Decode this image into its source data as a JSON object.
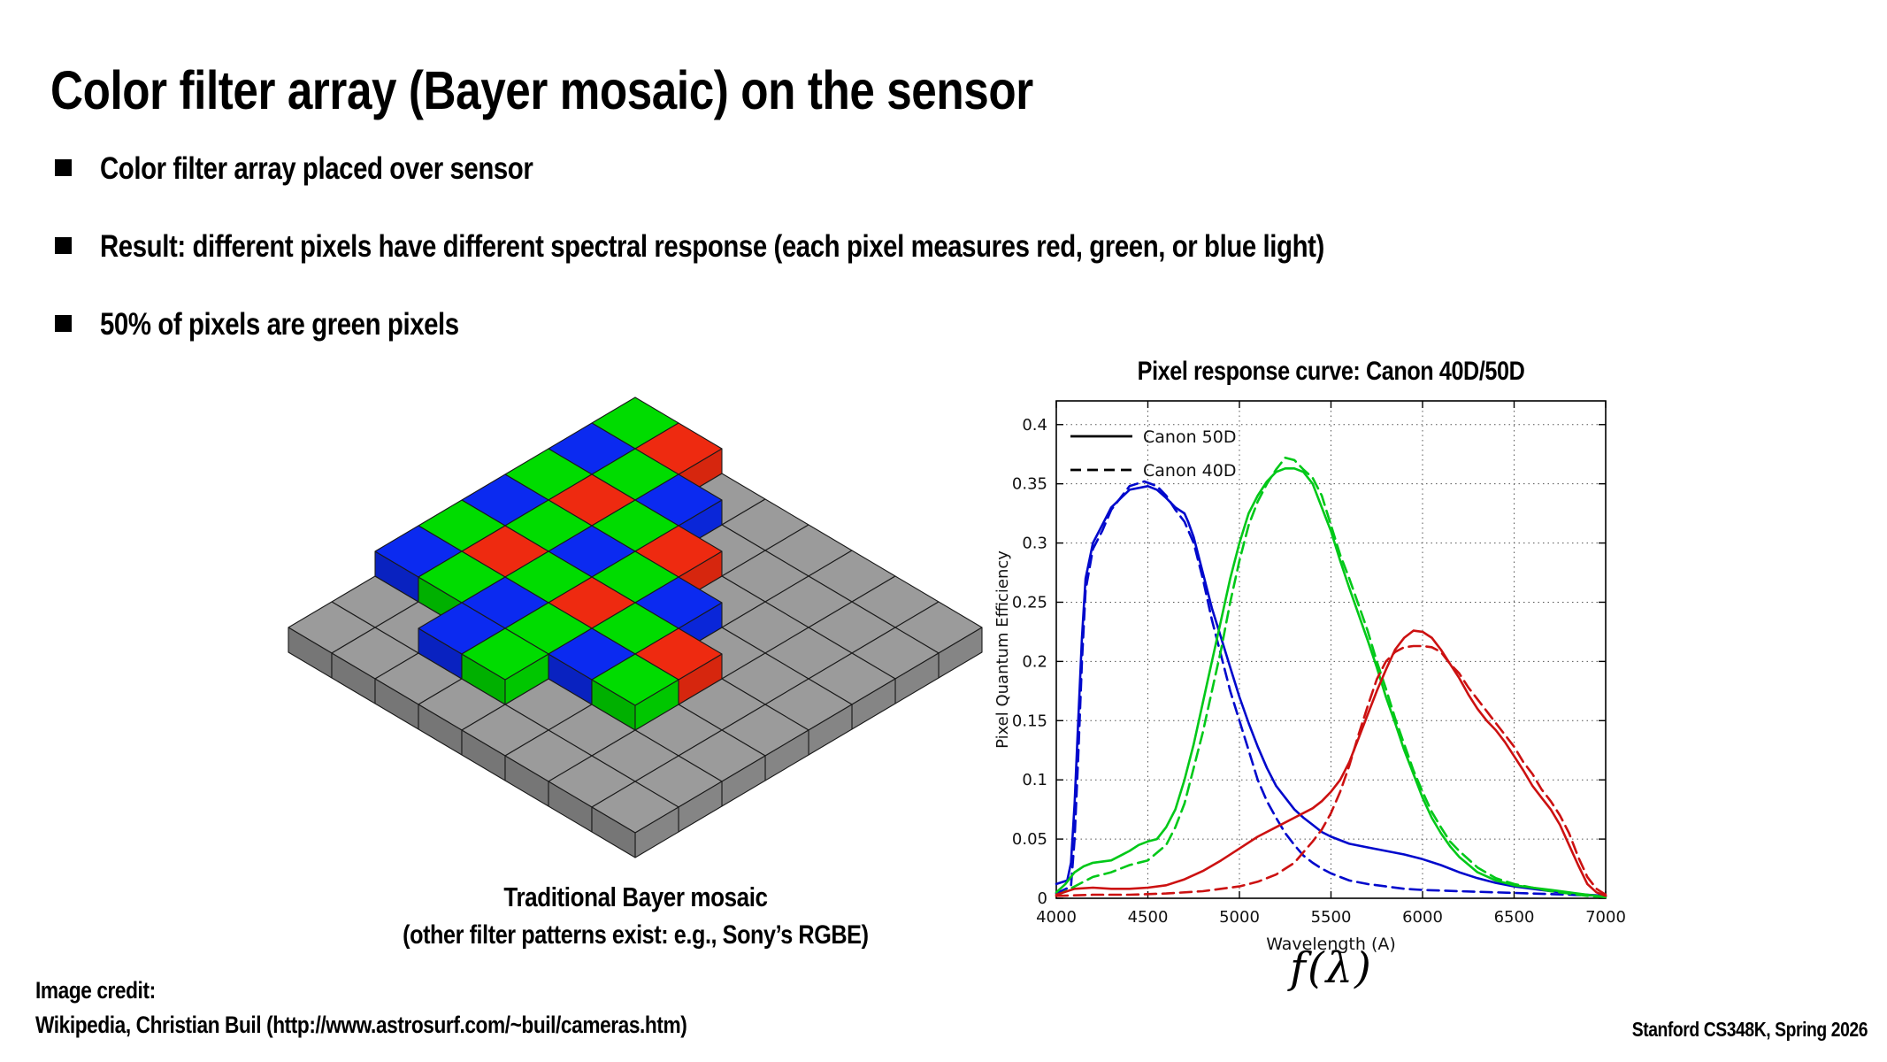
{
  "slide": {
    "title": "Color filter array (Bayer mosaic) on the sensor",
    "bullets": [
      "Color filter array placed over sensor",
      "Result: different pixels have different spectral response (each pixel measures red, green, or blue light)",
      "50% of pixels are green pixels"
    ],
    "footer_left_line1": "Image credit:",
    "footer_left_line2": "Wikipedia, Christian Buil (http://www.astrosurf.com/~buil/cameras.htm)",
    "footer_right": "Stanford CS348K, Spring 2026"
  },
  "mosaic": {
    "caption_line1": "Traditional Bayer mosaic",
    "caption_line2": "(other filter patterns exist: e.g., Sony’s RGBE)",
    "base_grid": {
      "cols": 8,
      "rows": 8
    },
    "palette": {
      "G": "#00dc00",
      "R": "#ee2a10",
      "B": "#0b2af0",
      "base": "#9b9b9b",
      "outline": "#1a1a1a"
    },
    "filter_rows": [
      {
        "y": 0,
        "x0": 0,
        "cells": "GR"
      },
      {
        "y": 1,
        "x0": 0,
        "cells": "BGB"
      },
      {
        "y": 2,
        "x0": 0,
        "cells": "GRGR"
      },
      {
        "y": 3,
        "x0": 0,
        "cells": "BGBGB"
      },
      {
        "y": 4,
        "x0": 0,
        "cells": "GRGRGR"
      },
      {
        "y": 5,
        "x0": 0,
        "cells": "BGBGBG"
      },
      {
        "y": 6,
        "x0": 2,
        "cells": "BG"
      }
    ]
  },
  "chart_data": {
    "type": "line",
    "title": "Pixel response curve: Canon 40D/50D",
    "xlabel": "Wavelength (A)",
    "ylabel": "Pixel Quantum Efficiency",
    "annotation_below": "f(λ)",
    "xlim": [
      4000,
      7000
    ],
    "ylim": [
      0,
      0.42
    ],
    "xticks": [
      4000,
      4500,
      5000,
      5500,
      6000,
      6500,
      7000
    ],
    "yticks": [
      0,
      0.05,
      0.1,
      0.15,
      0.2,
      0.25,
      0.3,
      0.35,
      0.4
    ],
    "grid": true,
    "legend_position": "top-left",
    "legend": [
      {
        "label": "Canon 50D",
        "style": "solid"
      },
      {
        "label": "Canon 40D",
        "style": "dashed"
      }
    ],
    "series": [
      {
        "name": "Blue channel Canon 50D",
        "color": "#0008cc",
        "style": "solid",
        "points": [
          [
            4000,
            0.012
          ],
          [
            4060,
            0.015
          ],
          [
            4080,
            0.03
          ],
          [
            4100,
            0.08
          ],
          [
            4120,
            0.15
          ],
          [
            4140,
            0.22
          ],
          [
            4160,
            0.27
          ],
          [
            4200,
            0.3
          ],
          [
            4250,
            0.315
          ],
          [
            4300,
            0.33
          ],
          [
            4400,
            0.345
          ],
          [
            4500,
            0.348
          ],
          [
            4550,
            0.345
          ],
          [
            4600,
            0.338
          ],
          [
            4650,
            0.33
          ],
          [
            4700,
            0.325
          ],
          [
            4720,
            0.318
          ],
          [
            4750,
            0.305
          ],
          [
            4800,
            0.275
          ],
          [
            4850,
            0.245
          ],
          [
            4900,
            0.22
          ],
          [
            4950,
            0.195
          ],
          [
            5000,
            0.17
          ],
          [
            5050,
            0.148
          ],
          [
            5100,
            0.128
          ],
          [
            5150,
            0.11
          ],
          [
            5200,
            0.095
          ],
          [
            5250,
            0.085
          ],
          [
            5300,
            0.075
          ],
          [
            5350,
            0.068
          ],
          [
            5400,
            0.062
          ],
          [
            5450,
            0.056
          ],
          [
            5500,
            0.052
          ],
          [
            5600,
            0.046
          ],
          [
            5700,
            0.043
          ],
          [
            5800,
            0.04
          ],
          [
            5900,
            0.037
          ],
          [
            6000,
            0.033
          ],
          [
            6100,
            0.028
          ],
          [
            6200,
            0.022
          ],
          [
            6300,
            0.017
          ],
          [
            6400,
            0.013
          ],
          [
            6500,
            0.01
          ],
          [
            6600,
            0.008
          ],
          [
            6700,
            0.006
          ],
          [
            6800,
            0.004
          ],
          [
            6900,
            0.003
          ],
          [
            7000,
            0.002
          ]
        ]
      },
      {
        "name": "Blue channel Canon 40D",
        "color": "#0008cc",
        "style": "dashed",
        "points": [
          [
            4000,
            0.004
          ],
          [
            4080,
            0.01
          ],
          [
            4100,
            0.05
          ],
          [
            4120,
            0.12
          ],
          [
            4140,
            0.2
          ],
          [
            4160,
            0.26
          ],
          [
            4200,
            0.295
          ],
          [
            4250,
            0.31
          ],
          [
            4300,
            0.328
          ],
          [
            4400,
            0.348
          ],
          [
            4480,
            0.352
          ],
          [
            4550,
            0.348
          ],
          [
            4600,
            0.34
          ],
          [
            4650,
            0.328
          ],
          [
            4700,
            0.318
          ],
          [
            4750,
            0.3
          ],
          [
            4800,
            0.27
          ],
          [
            4850,
            0.235
          ],
          [
            4900,
            0.205
          ],
          [
            4950,
            0.175
          ],
          [
            5000,
            0.15
          ],
          [
            5050,
            0.125
          ],
          [
            5100,
            0.1
          ],
          [
            5150,
            0.082
          ],
          [
            5200,
            0.068
          ],
          [
            5250,
            0.055
          ],
          [
            5300,
            0.045
          ],
          [
            5350,
            0.036
          ],
          [
            5400,
            0.03
          ],
          [
            5450,
            0.025
          ],
          [
            5500,
            0.021
          ],
          [
            5600,
            0.015
          ],
          [
            5700,
            0.012
          ],
          [
            5800,
            0.01
          ],
          [
            5900,
            0.008
          ],
          [
            6000,
            0.007
          ],
          [
            6200,
            0.006
          ],
          [
            6400,
            0.005
          ],
          [
            6600,
            0.004
          ],
          [
            6800,
            0.003
          ],
          [
            7000,
            0.002
          ]
        ]
      },
      {
        "name": "Green channel Canon 50D",
        "color": "#00c818",
        "style": "solid",
        "points": [
          [
            4000,
            0.005
          ],
          [
            4050,
            0.012
          ],
          [
            4100,
            0.022
          ],
          [
            4150,
            0.027
          ],
          [
            4200,
            0.03
          ],
          [
            4300,
            0.032
          ],
          [
            4400,
            0.04
          ],
          [
            4450,
            0.045
          ],
          [
            4500,
            0.048
          ],
          [
            4550,
            0.05
          ],
          [
            4600,
            0.06
          ],
          [
            4650,
            0.075
          ],
          [
            4700,
            0.1
          ],
          [
            4750,
            0.13
          ],
          [
            4800,
            0.165
          ],
          [
            4850,
            0.2
          ],
          [
            4900,
            0.235
          ],
          [
            4950,
            0.27
          ],
          [
            5000,
            0.3
          ],
          [
            5050,
            0.325
          ],
          [
            5100,
            0.34
          ],
          [
            5150,
            0.352
          ],
          [
            5200,
            0.36
          ],
          [
            5250,
            0.363
          ],
          [
            5300,
            0.363
          ],
          [
            5350,
            0.36
          ],
          [
            5400,
            0.35
          ],
          [
            5450,
            0.33
          ],
          [
            5500,
            0.31
          ],
          [
            5550,
            0.285
          ],
          [
            5600,
            0.262
          ],
          [
            5650,
            0.24
          ],
          [
            5700,
            0.218
          ],
          [
            5750,
            0.195
          ],
          [
            5800,
            0.17
          ],
          [
            5850,
            0.148
          ],
          [
            5900,
            0.125
          ],
          [
            5950,
            0.105
          ],
          [
            6000,
            0.085
          ],
          [
            6050,
            0.068
          ],
          [
            6100,
            0.055
          ],
          [
            6150,
            0.044
          ],
          [
            6200,
            0.035
          ],
          [
            6300,
            0.022
          ],
          [
            6400,
            0.015
          ],
          [
            6500,
            0.011
          ],
          [
            6600,
            0.009
          ],
          [
            6700,
            0.007
          ],
          [
            6800,
            0.005
          ],
          [
            6900,
            0.003
          ],
          [
            7000,
            0.001
          ]
        ]
      },
      {
        "name": "Green channel Canon 40D",
        "color": "#00c818",
        "style": "dashed",
        "points": [
          [
            4000,
            0.002
          ],
          [
            4100,
            0.01
          ],
          [
            4200,
            0.018
          ],
          [
            4300,
            0.022
          ],
          [
            4400,
            0.028
          ],
          [
            4500,
            0.032
          ],
          [
            4600,
            0.045
          ],
          [
            4650,
            0.06
          ],
          [
            4700,
            0.08
          ],
          [
            4750,
            0.11
          ],
          [
            4800,
            0.14
          ],
          [
            4850,
            0.175
          ],
          [
            4900,
            0.21
          ],
          [
            4950,
            0.25
          ],
          [
            5000,
            0.285
          ],
          [
            5050,
            0.315
          ],
          [
            5100,
            0.335
          ],
          [
            5150,
            0.35
          ],
          [
            5200,
            0.362
          ],
          [
            5250,
            0.372
          ],
          [
            5300,
            0.37
          ],
          [
            5350,
            0.362
          ],
          [
            5400,
            0.355
          ],
          [
            5450,
            0.34
          ],
          [
            5500,
            0.315
          ],
          [
            5550,
            0.29
          ],
          [
            5600,
            0.27
          ],
          [
            5650,
            0.248
          ],
          [
            5700,
            0.226
          ],
          [
            5750,
            0.2
          ],
          [
            5800,
            0.177
          ],
          [
            5850,
            0.152
          ],
          [
            5900,
            0.13
          ],
          [
            5950,
            0.108
          ],
          [
            6000,
            0.09
          ],
          [
            6050,
            0.073
          ],
          [
            6100,
            0.06
          ],
          [
            6150,
            0.048
          ],
          [
            6200,
            0.04
          ],
          [
            6300,
            0.026
          ],
          [
            6400,
            0.017
          ],
          [
            6500,
            0.012
          ],
          [
            6600,
            0.009
          ],
          [
            6700,
            0.006
          ],
          [
            6800,
            0.004
          ],
          [
            6900,
            0.002
          ],
          [
            7000,
            0.001
          ]
        ]
      },
      {
        "name": "Red channel Canon 50D",
        "color": "#cc1111",
        "style": "solid",
        "points": [
          [
            4000,
            0.003
          ],
          [
            4100,
            0.008
          ],
          [
            4200,
            0.009
          ],
          [
            4300,
            0.008
          ],
          [
            4400,
            0.008
          ],
          [
            4500,
            0.009
          ],
          [
            4600,
            0.011
          ],
          [
            4700,
            0.016
          ],
          [
            4800,
            0.023
          ],
          [
            4900,
            0.032
          ],
          [
            5000,
            0.042
          ],
          [
            5100,
            0.052
          ],
          [
            5200,
            0.06
          ],
          [
            5300,
            0.068
          ],
          [
            5400,
            0.076
          ],
          [
            5450,
            0.082
          ],
          [
            5500,
            0.09
          ],
          [
            5550,
            0.1
          ],
          [
            5600,
            0.115
          ],
          [
            5650,
            0.135
          ],
          [
            5700,
            0.155
          ],
          [
            5750,
            0.175
          ],
          [
            5800,
            0.193
          ],
          [
            5850,
            0.21
          ],
          [
            5900,
            0.22
          ],
          [
            5950,
            0.226
          ],
          [
            6000,
            0.225
          ],
          [
            6050,
            0.22
          ],
          [
            6100,
            0.21
          ],
          [
            6150,
            0.198
          ],
          [
            6200,
            0.186
          ],
          [
            6250,
            0.172
          ],
          [
            6300,
            0.16
          ],
          [
            6350,
            0.15
          ],
          [
            6400,
            0.142
          ],
          [
            6450,
            0.132
          ],
          [
            6500,
            0.12
          ],
          [
            6550,
            0.108
          ],
          [
            6600,
            0.095
          ],
          [
            6650,
            0.085
          ],
          [
            6700,
            0.075
          ],
          [
            6750,
            0.062
          ],
          [
            6800,
            0.045
          ],
          [
            6850,
            0.028
          ],
          [
            6900,
            0.012
          ],
          [
            6950,
            0.005
          ],
          [
            7000,
            0.002
          ]
        ]
      },
      {
        "name": "Red channel Canon 40D",
        "color": "#cc1111",
        "style": "dashed",
        "points": [
          [
            4000,
            0.002
          ],
          [
            4200,
            0.003
          ],
          [
            4400,
            0.003
          ],
          [
            4600,
            0.004
          ],
          [
            4800,
            0.006
          ],
          [
            5000,
            0.01
          ],
          [
            5100,
            0.014
          ],
          [
            5200,
            0.02
          ],
          [
            5300,
            0.03
          ],
          [
            5400,
            0.048
          ],
          [
            5450,
            0.058
          ],
          [
            5500,
            0.072
          ],
          [
            5550,
            0.09
          ],
          [
            5600,
            0.112
          ],
          [
            5650,
            0.138
          ],
          [
            5700,
            0.162
          ],
          [
            5750,
            0.185
          ],
          [
            5800,
            0.2
          ],
          [
            5850,
            0.208
          ],
          [
            5900,
            0.212
          ],
          [
            5950,
            0.213
          ],
          [
            6000,
            0.213
          ],
          [
            6050,
            0.212
          ],
          [
            6100,
            0.208
          ],
          [
            6150,
            0.198
          ],
          [
            6200,
            0.19
          ],
          [
            6250,
            0.178
          ],
          [
            6300,
            0.168
          ],
          [
            6350,
            0.158
          ],
          [
            6400,
            0.148
          ],
          [
            6450,
            0.138
          ],
          [
            6500,
            0.128
          ],
          [
            6550,
            0.115
          ],
          [
            6600,
            0.105
          ],
          [
            6650,
            0.092
          ],
          [
            6700,
            0.082
          ],
          [
            6750,
            0.07
          ],
          [
            6800,
            0.055
          ],
          [
            6850,
            0.035
          ],
          [
            6900,
            0.018
          ],
          [
            6950,
            0.008
          ],
          [
            7000,
            0.003
          ]
        ]
      }
    ]
  }
}
